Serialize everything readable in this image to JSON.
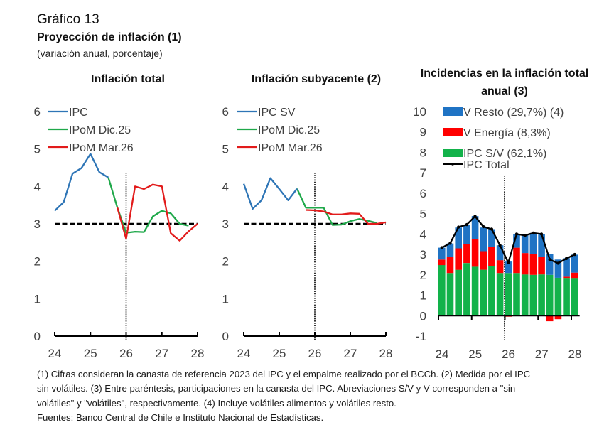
{
  "figure": {
    "number": "Gráfico 13",
    "title": "Proyección de inflación (1)",
    "subtitle": "(variación anual, porcentaje)"
  },
  "notes": [
    "(1) Cifras consideran la canasta de referencia 2023 del IPC y el empalme realizado por el BCCh. (2) Medida por el IPC",
    "sin volátiles. (3) Entre paréntesis, participaciones en la canasta del IPC. Abreviaciones S/V y V corresponden a \"sin",
    "volátiles\" y \"volátiles\", respectivamente. (4) Incluye volátiles alimentos y volátiles resto.",
    "Fuentes: Banco Central de Chile e Instituto Nacional de Estadísticas."
  ],
  "colors": {
    "blue": "#2e75b6",
    "green": "#1fa84a",
    "red": "#e21b1b",
    "bar_blue": "#1f73c4",
    "bar_red": "#ff0000",
    "bar_green": "#12b24a",
    "black": "#000000",
    "axis_text": "#404040"
  },
  "chart_data": [
    {
      "type": "line",
      "title": "Inflación total",
      "xlabel": "",
      "ylabel": "",
      "x_ticks": [
        "24",
        "25",
        "26",
        "27",
        "28"
      ],
      "xlim": [
        24,
        28
      ],
      "y_ticks": [
        "0",
        "1",
        "2",
        "3",
        "4",
        "5",
        "6"
      ],
      "ylim": [
        0,
        6
      ],
      "target_line": 3,
      "forecast_start": 26,
      "legend_position": "top-left",
      "series": [
        {
          "name": "IPC",
          "color_key": "blue",
          "x": [
            24,
            24.25,
            24.5,
            24.75,
            25,
            25.25,
            25.5
          ],
          "values": [
            3.35,
            3.58,
            4.34,
            4.49,
            4.87,
            4.38,
            4.24
          ]
        },
        {
          "name": "IPoM Dic.25",
          "color_key": "green",
          "x": [
            25.5,
            25.75,
            26,
            26.25,
            26.5,
            26.75,
            27,
            27.25,
            27.5,
            27.75
          ],
          "values": [
            4.24,
            3.45,
            2.76,
            2.79,
            2.78,
            3.2,
            3.35,
            3.28,
            3.0,
            2.95
          ]
        },
        {
          "name": "IPoM Mar.26",
          "color_key": "red",
          "x": [
            25.75,
            26,
            26.25,
            26.5,
            26.75,
            27,
            27.25,
            27.5,
            27.75,
            28
          ],
          "values": [
            3.45,
            2.6,
            4.0,
            3.93,
            4.05,
            4.0,
            2.75,
            2.55,
            2.8,
            3.0
          ]
        }
      ]
    },
    {
      "type": "line",
      "title": "Inflación subyacente (2)",
      "xlabel": "",
      "ylabel": "",
      "x_ticks": [
        "24",
        "25",
        "26",
        "27",
        "28"
      ],
      "xlim": [
        24,
        28
      ],
      "y_ticks": [
        "0",
        "1",
        "2",
        "3",
        "4",
        "5",
        "6"
      ],
      "ylim": [
        0,
        6
      ],
      "target_line": 3,
      "forecast_start": 26,
      "legend_position": "top-left",
      "series": [
        {
          "name": "IPC SV",
          "color_key": "blue",
          "x": [
            24,
            24.25,
            24.5,
            24.75,
            25,
            25.25,
            25.5
          ],
          "values": [
            4.07,
            3.4,
            3.63,
            4.22,
            3.93,
            3.63,
            3.94
          ]
        },
        {
          "name": "IPoM Dic.25",
          "color_key": "green",
          "x": [
            25.5,
            25.75,
            26,
            26.25,
            26.5,
            26.75,
            27,
            27.25,
            27.5,
            27.75
          ],
          "values": [
            3.94,
            3.43,
            3.43,
            3.43,
            2.97,
            2.98,
            3.07,
            3.13,
            3.08,
            3.02
          ]
        },
        {
          "name": "IPoM Mar.26",
          "color_key": "red",
          "x": [
            25.75,
            26,
            26.25,
            26.5,
            26.75,
            27,
            27.25,
            27.5,
            27.75,
            28
          ],
          "values": [
            3.37,
            3.36,
            3.33,
            3.25,
            3.25,
            3.28,
            3.27,
            3.0,
            3.0,
            3.04
          ]
        }
      ]
    },
    {
      "type": "bar",
      "stacked": true,
      "title": "Incidencias en la inflación total anual (3)",
      "xlabel": "",
      "ylabel": "",
      "x_ticks": [
        "24",
        "25",
        "26",
        "27",
        "28"
      ],
      "xlim": [
        24,
        28
      ],
      "y_ticks": [
        "-1",
        "0",
        "1",
        "2",
        "3",
        "4",
        "5",
        "6",
        "7",
        "8",
        "9",
        "10"
      ],
      "ylim": [
        -1,
        10
      ],
      "forecast_start": 26,
      "legend_position": "top-left",
      "x": [
        24,
        24.25,
        24.5,
        24.75,
        25,
        25.25,
        25.5,
        25.75,
        26,
        26.25,
        26.5,
        26.75,
        27,
        27.25,
        27.5,
        27.75,
        28
      ],
      "series": [
        {
          "name": "IPC S/V (62,1%)",
          "color_key": "bar_green",
          "kind": "bar",
          "values": [
            2.48,
            2.09,
            2.25,
            2.58,
            2.4,
            2.25,
            2.44,
            2.09,
            2.09,
            2.09,
            2.02,
            2.0,
            2.02,
            2.0,
            1.86,
            1.85,
            1.85
          ]
        },
        {
          "name": "V Energía (8,3%)",
          "color_key": "bar_red",
          "kind": "bar",
          "values": [
            0.27,
            0.78,
            1.05,
            0.93,
            1.37,
            0.91,
            0.93,
            0.63,
            -0.05,
            1.24,
            1.05,
            1.02,
            0.85,
            -0.27,
            -0.17,
            0.06,
            0.26
          ]
        },
        {
          "name": "V Resto (29,7%) (4)",
          "color_key": "bar_blue",
          "kind": "bar",
          "values": [
            0.58,
            0.67,
            1.02,
            0.93,
            1.11,
            1.16,
            0.87,
            0.73,
            0.56,
            0.67,
            0.87,
            1.03,
            1.13,
            1.02,
            0.89,
            0.91,
            0.88
          ]
        },
        {
          "name": "IPC Total",
          "color_key": "black",
          "kind": "line",
          "values": [
            3.33,
            3.55,
            4.34,
            4.46,
            4.87,
            4.36,
            4.24,
            3.45,
            2.6,
            4.0,
            3.93,
            4.05,
            4.0,
            2.75,
            2.57,
            2.8,
            3.0
          ]
        }
      ],
      "legend_order": [
        "V Resto (29,7%) (4)",
        "V Energía (8,3%)",
        "IPC S/V (62,1%)",
        "IPC Total"
      ]
    }
  ]
}
